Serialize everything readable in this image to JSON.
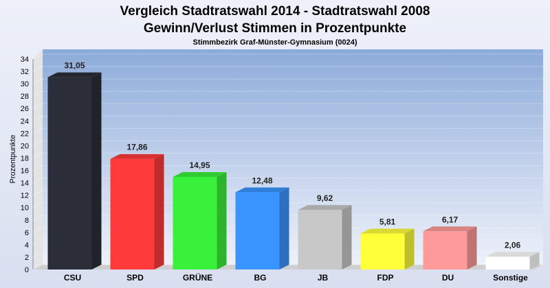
{
  "chart_data": {
    "type": "bar",
    "title": "Vergleich Stadtratswahl 2014 - Stadtratswahl 2008",
    "title_line2": "Gewinn/Verlust Stimmen in Prozentpunkte",
    "subtitle": "Stimmbezirk Graf-Münster-Gymnasium (0024)",
    "xlabel": "",
    "ylabel": "Prozentpunkte",
    "ylim": [
      0,
      34
    ],
    "ytick_step": 2,
    "grid": true,
    "categories": [
      "CSU",
      "SPD",
      "GRÜNE",
      "BG",
      "JB",
      "FDP",
      "DU",
      "Sonstige"
    ],
    "values": [
      31.05,
      17.86,
      14.95,
      12.48,
      9.62,
      5.81,
      6.17,
      2.06
    ],
    "value_labels": [
      "31,05",
      "17,86",
      "14,95",
      "12,48",
      "9,62",
      "5,81",
      "6,17",
      "2,06"
    ],
    "colors": [
      "#2b2e38",
      "#ff3a3a",
      "#39f03a",
      "#3a94ff",
      "#c8c8c8",
      "#ffff3a",
      "#ff9a9a",
      "#ffffff"
    ]
  }
}
